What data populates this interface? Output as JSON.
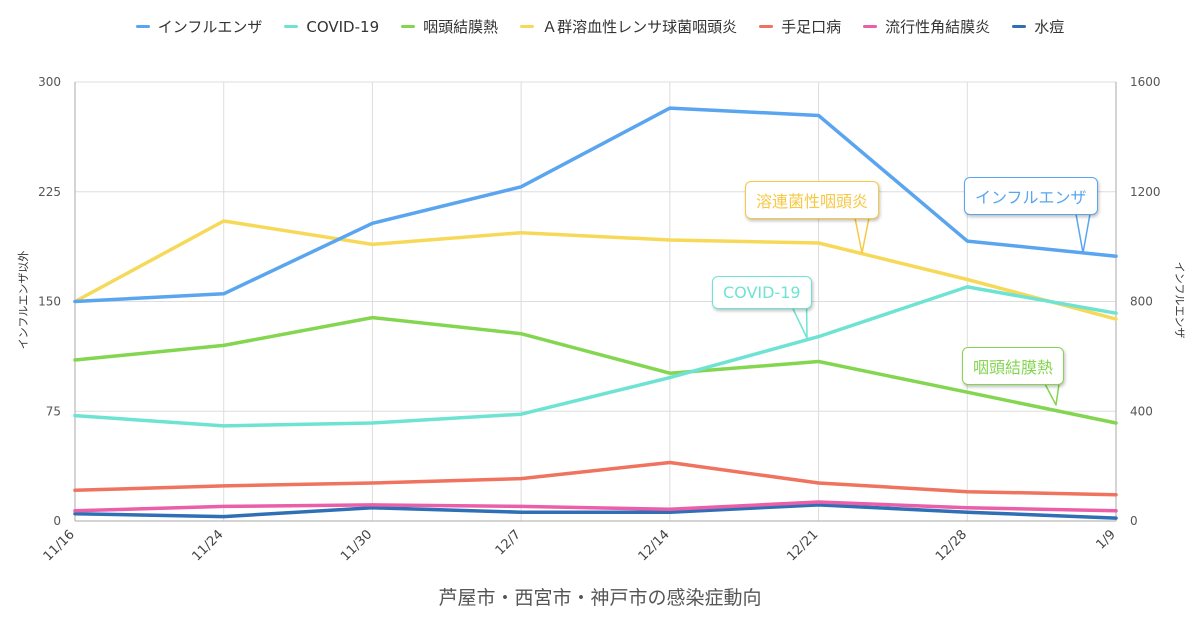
{
  "chart_data": {
    "type": "line",
    "title": "芦屋市・西宮市・神戸市の感染症動向",
    "categories": [
      "11/16",
      "11/24",
      "11/30",
      "12/7",
      "12/14",
      "12/21",
      "12/28",
      "1/9"
    ],
    "left_axis": {
      "label": "インフルエンザ以外",
      "ylim": [
        0,
        300
      ],
      "ticks": [
        "0",
        "75",
        "150",
        "225",
        "300"
      ]
    },
    "right_axis": {
      "label": "インフルエンザ",
      "ylim": [
        0,
        1600
      ],
      "ticks": [
        "0",
        "400",
        "800",
        "1200",
        "1600"
      ]
    },
    "grid": true,
    "legend_position": "top",
    "series": [
      {
        "name": "インフルエンザ",
        "color": "#5aa5ef",
        "axis": "right",
        "values": [
          800,
          828,
          1085,
          1218,
          1505,
          1478,
          1020,
          965
        ]
      },
      {
        "name": "COVID-19",
        "color": "#6fe3d3",
        "axis": "left",
        "values": [
          72,
          65,
          67,
          73,
          98,
          126,
          160,
          142
        ]
      },
      {
        "name": "咽頭結膜熱",
        "color": "#84d650",
        "axis": "left",
        "values": [
          110,
          120,
          139,
          128,
          101,
          109,
          88,
          67
        ]
      },
      {
        "name": "Ａ群溶血性レンサ球菌咽頭炎",
        "color": "#f7d95a",
        "axis": "left",
        "values": [
          150,
          205,
          189,
          197,
          192,
          190,
          165,
          138
        ]
      },
      {
        "name": "手足口病",
        "color": "#ef735e",
        "axis": "left",
        "values": [
          21,
          24,
          26,
          29,
          40,
          26,
          20,
          18
        ]
      },
      {
        "name": "流行性角結膜炎",
        "color": "#ea5fa8",
        "axis": "left",
        "values": [
          7,
          10,
          11,
          10,
          8,
          13,
          9,
          7
        ]
      },
      {
        "name": "水痘",
        "color": "#2f6fb5",
        "axis": "left",
        "values": [
          5,
          3,
          9,
          6,
          6,
          11,
          6,
          2
        ]
      }
    ],
    "annotations": [
      {
        "text": "インフルエンザ",
        "series": "インフルエンザ",
        "color": "#5aa5ef"
      },
      {
        "text": "溶連菌性咽頭炎",
        "series": "Ａ群溶血性レンサ球菌咽頭炎",
        "color": "#f7c844"
      },
      {
        "text": "COVID-19",
        "series": "COVID-19",
        "color": "#6fe3d3"
      },
      {
        "text": "咽頭結膜熱",
        "series": "咽頭結膜熱",
        "color": "#84d650"
      }
    ]
  }
}
